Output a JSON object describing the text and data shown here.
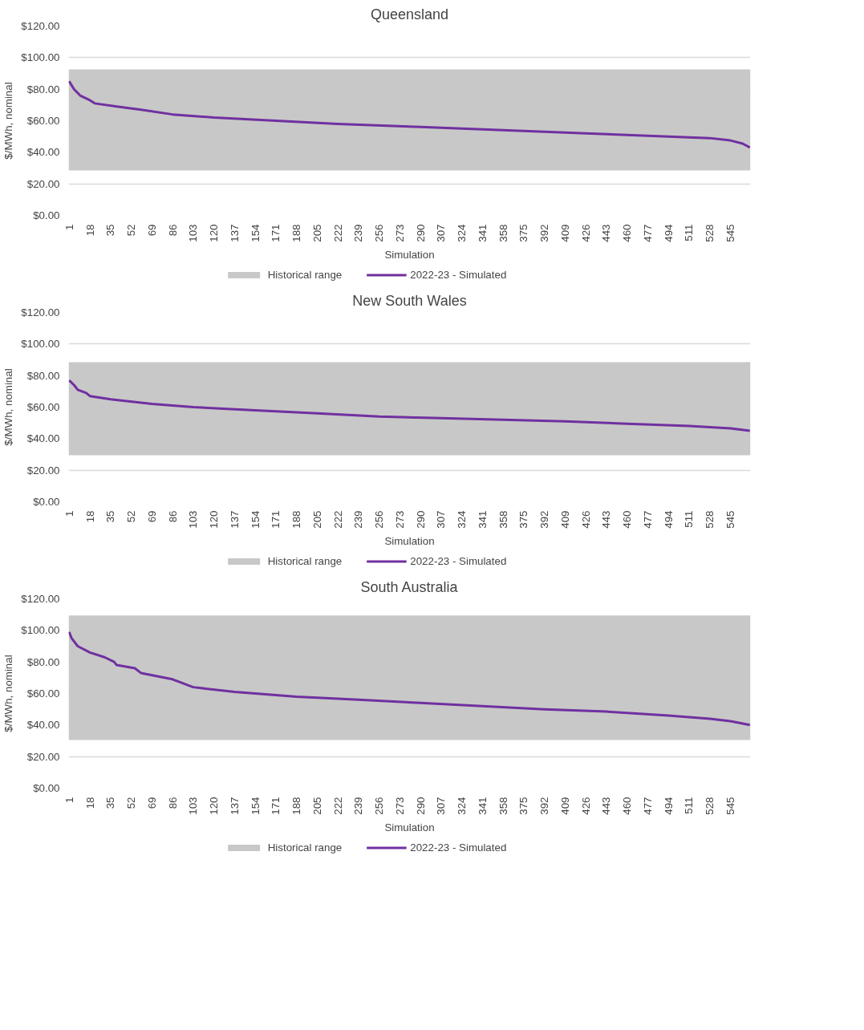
{
  "chart_data": [
    {
      "type": "line",
      "title": "Queensland",
      "xlabel": "Simulation",
      "ylabel": "$/MWh, nominal",
      "series": [
        {
          "name": "2022-23 - Simulated",
          "color": "#7030a0",
          "x": [
            1,
            5,
            10,
            18,
            22,
            40,
            60,
            86,
            120,
            171,
            222,
            290,
            358,
            426,
            494,
            528,
            545,
            555,
            561
          ],
          "values": [
            85,
            80,
            76,
            73,
            71,
            69,
            67,
            64,
            62,
            60,
            58,
            56,
            54,
            52,
            50,
            49,
            47.5,
            45.5,
            43
          ]
        }
      ],
      "bands": [
        {
          "axis": "y",
          "from": 28.5,
          "to": 92.5,
          "label": "Historical range",
          "color": "#c8c8c8"
        }
      ],
      "xlim": [
        0.5,
        561.5
      ],
      "xticks": [
        1,
        18,
        35,
        52,
        69,
        86,
        103,
        120,
        137,
        154,
        171,
        188,
        205,
        222,
        239,
        256,
        273,
        290,
        307,
        324,
        341,
        358,
        375,
        392,
        409,
        426,
        443,
        460,
        477,
        494,
        511,
        528,
        545
      ],
      "ylim": [
        0,
        120
      ],
      "yticks": [
        {
          "value": 0,
          "label": "$0.00"
        },
        {
          "value": 20,
          "label": "$20.00"
        },
        {
          "value": 40,
          "label": "$40.00"
        },
        {
          "value": 60,
          "label": "$60.00"
        },
        {
          "value": 80,
          "label": "$80.00"
        },
        {
          "value": 100,
          "label": "$100.00"
        },
        {
          "value": 120,
          "label": "$120.00"
        }
      ],
      "grid": "y",
      "legend": "bottom",
      "line_style": "solid"
    },
    {
      "type": "line",
      "title": "New South Wales",
      "xlabel": "Simulation",
      "ylabel": "$/MWh, nominal",
      "series": [
        {
          "name": "2022-23 - Simulated",
          "color": "#7030a0",
          "x": [
            1,
            5,
            8,
            15,
            18,
            35,
            69,
            103,
            154,
            205,
            256,
            307,
            358,
            409,
            460,
            511,
            545,
            561
          ],
          "values": [
            77,
            74,
            71,
            69,
            67,
            65,
            62,
            60,
            58,
            56,
            54,
            53,
            52,
            51,
            49.5,
            48,
            46.5,
            45
          ]
        }
      ],
      "bands": [
        {
          "axis": "y",
          "from": 29.5,
          "to": 88.5,
          "label": "Historical range",
          "color": "#c8c8c8"
        }
      ],
      "xlim": [
        0.5,
        561.5
      ],
      "xticks": [
        1,
        18,
        35,
        52,
        69,
        86,
        103,
        120,
        137,
        154,
        171,
        188,
        205,
        222,
        239,
        256,
        273,
        290,
        307,
        324,
        341,
        358,
        375,
        392,
        409,
        426,
        443,
        460,
        477,
        494,
        511,
        528,
        545
      ],
      "ylim": [
        0,
        120
      ],
      "yticks": [
        {
          "value": 0,
          "label": "$0.00"
        },
        {
          "value": 20,
          "label": "$20.00"
        },
        {
          "value": 40,
          "label": "$40.00"
        },
        {
          "value": 60,
          "label": "$60.00"
        },
        {
          "value": 80,
          "label": "$80.00"
        },
        {
          "value": 100,
          "label": "$100.00"
        },
        {
          "value": 120,
          "label": "$120.00"
        }
      ],
      "grid": "y",
      "legend": "bottom",
      "line_style": "solid"
    },
    {
      "type": "line",
      "title": "South Australia",
      "xlabel": "Simulation",
      "ylabel": "$/MWh, nominal",
      "series": [
        {
          "name": "2022-23 - Simulated",
          "color": "#7030a0",
          "x": [
            1,
            3,
            8,
            18,
            30,
            38,
            40,
            55,
            60,
            86,
            103,
            137,
            188,
            239,
            290,
            341,
            392,
            443,
            494,
            528,
            545,
            561
          ],
          "values": [
            99,
            95,
            90,
            86,
            83,
            80,
            78,
            76,
            73,
            69,
            64,
            61,
            58,
            56,
            54,
            52,
            50,
            48.5,
            46,
            44,
            42.5,
            40
          ]
        }
      ],
      "bands": [
        {
          "axis": "y",
          "from": 30.5,
          "to": 109.5,
          "label": "Historical range",
          "color": "#c8c8c8"
        }
      ],
      "xlim": [
        0.5,
        561.5
      ],
      "xticks": [
        1,
        18,
        35,
        52,
        69,
        86,
        103,
        120,
        137,
        154,
        171,
        188,
        205,
        222,
        239,
        256,
        273,
        290,
        307,
        324,
        341,
        358,
        375,
        392,
        409,
        426,
        443,
        460,
        477,
        494,
        511,
        528,
        545
      ],
      "ylim": [
        0,
        120
      ],
      "yticks": [
        {
          "value": 0,
          "label": "$0.00"
        },
        {
          "value": 20,
          "label": "$20.00"
        },
        {
          "value": 40,
          "label": "$40.00"
        },
        {
          "value": 60,
          "label": "$60.00"
        },
        {
          "value": 80,
          "label": "$80.00"
        },
        {
          "value": 100,
          "label": "$100.00"
        },
        {
          "value": 120,
          "label": "$120.00"
        }
      ],
      "grid": "y",
      "legend": "bottom",
      "line_style": "solid"
    }
  ]
}
